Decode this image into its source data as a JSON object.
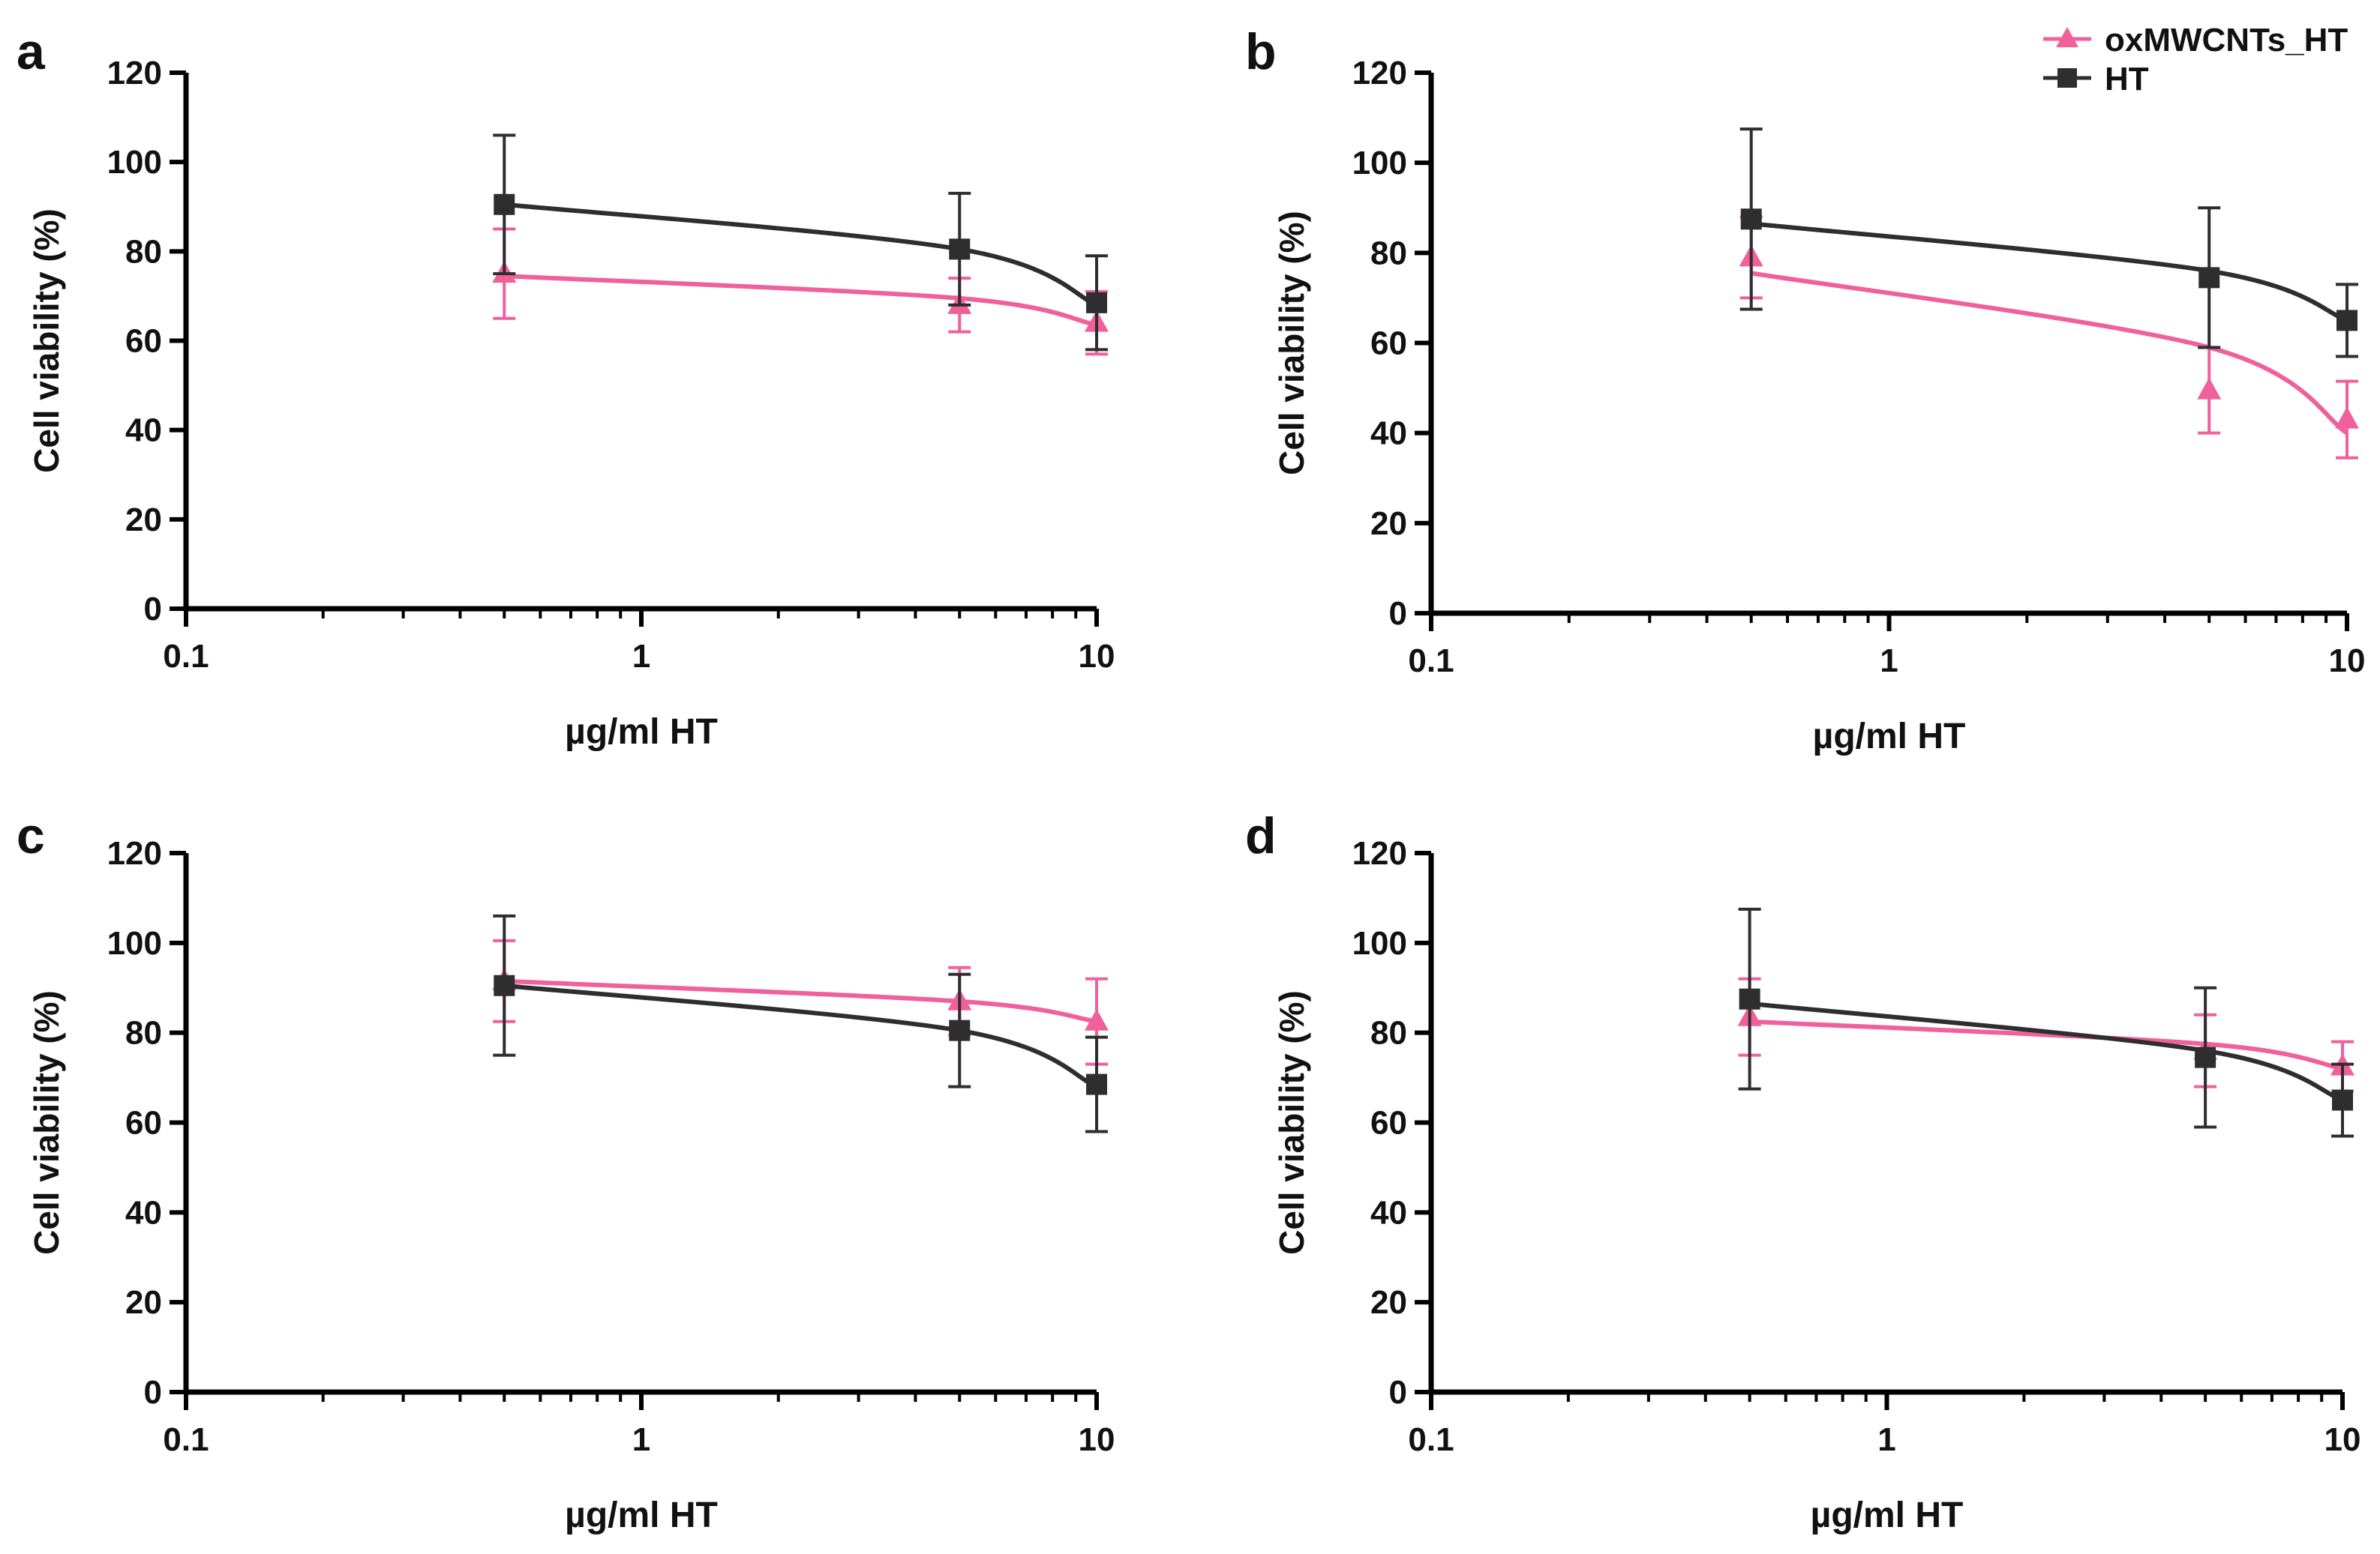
{
  "colors": {
    "oxMWCNTs_HT": "#f0609a",
    "HT": "#2e2e2e",
    "axis": "#000000",
    "text": "#111111"
  },
  "legend": {
    "placement": "top-right of panel b",
    "entries": [
      {
        "name": "oxMWCNTs_HT",
        "marker": "triangle-up-icon",
        "color": "#f0609a"
      },
      {
        "name": "HT",
        "marker": "square-icon",
        "color": "#2e2e2e"
      }
    ]
  },
  "chart_data": [
    {
      "panel": "a",
      "type": "scatter",
      "xscale": "log",
      "xlabel": "µg/ml HT",
      "ylabel": "Cell viability (%)",
      "xlim": [
        0.1,
        10
      ],
      "ylim": [
        0,
        120
      ],
      "xticks": [
        "0.1",
        "1",
        "10"
      ],
      "yticks": [
        "0",
        "20",
        "40",
        "60",
        "80",
        "100",
        "120"
      ],
      "series": [
        {
          "name": "oxMWCNTs_HT",
          "x": [
            0.5,
            5,
            10
          ],
          "y": [
            75,
            68,
            64
          ],
          "err": [
            10,
            6,
            7
          ],
          "fit": [
            74.5,
            69.5,
            63.5
          ]
        },
        {
          "name": "HT",
          "x": [
            0.5,
            5,
            10
          ],
          "y": [
            90.5,
            80.5,
            68.5
          ],
          "err": [
            15.5,
            12.5,
            10.5
          ],
          "fit": [
            90.5,
            80.5,
            68
          ]
        }
      ]
    },
    {
      "panel": "b",
      "type": "scatter",
      "xscale": "log",
      "xlabel": "µg/ml HT",
      "ylabel": "Cell viability (%)",
      "xlim": [
        0.1,
        10
      ],
      "ylim": [
        0,
        120
      ],
      "xticks": [
        "0.1",
        "1",
        "10"
      ],
      "yticks": [
        "0",
        "20",
        "40",
        "60",
        "80",
        "100",
        "120"
      ],
      "series": [
        {
          "name": "oxMWCNTs_HT",
          "x": [
            0.5,
            5,
            10
          ],
          "y": [
            79,
            49.5,
            43
          ],
          "err": [
            9,
            9.5,
            8.5
          ],
          "fit": [
            75.5,
            59,
            40
          ]
        },
        {
          "name": "HT",
          "x": [
            0.5,
            5,
            10
          ],
          "y": [
            87.5,
            74.5,
            65
          ],
          "err": [
            20,
            15.5,
            8
          ],
          "fit": [
            86.5,
            76,
            65
          ]
        }
      ]
    },
    {
      "panel": "c",
      "type": "scatter",
      "xscale": "log",
      "xlabel": "µg/ml HT",
      "ylabel": "Cell viability (%)",
      "xlim": [
        0.1,
        10
      ],
      "ylim": [
        0,
        120
      ],
      "xticks": [
        "0.1",
        "1",
        "10"
      ],
      "yticks": [
        "0",
        "20",
        "40",
        "60",
        "80",
        "100",
        "120"
      ],
      "series": [
        {
          "name": "oxMWCNTs_HT",
          "x": [
            0.5,
            5,
            10
          ],
          "y": [
            91.5,
            87,
            82.5
          ],
          "err": [
            9,
            7.5,
            9.5
          ],
          "fit": [
            91.5,
            87,
            82.5
          ]
        },
        {
          "name": "HT",
          "x": [
            0.5,
            5,
            10
          ],
          "y": [
            90.5,
            80.5,
            68.5
          ],
          "err": [
            15.5,
            12.5,
            10.5
          ],
          "fit": [
            90.5,
            80.5,
            68
          ]
        }
      ]
    },
    {
      "panel": "d",
      "type": "scatter",
      "xscale": "log",
      "xlabel": "µg/ml HT",
      "ylabel": "Cell viability (%)",
      "xlim": [
        0.1,
        10
      ],
      "ylim": [
        0,
        120
      ],
      "xticks": [
        "0.1",
        "1",
        "10"
      ],
      "yticks": [
        "0",
        "20",
        "40",
        "60",
        "80",
        "100",
        "120"
      ],
      "series": [
        {
          "name": "oxMWCNTs_HT",
          "x": [
            0.5,
            5,
            10
          ],
          "y": [
            83.5,
            76,
            72.5
          ],
          "err": [
            8.5,
            8,
            5.5
          ],
          "fit": [
            82.5,
            77.5,
            72
          ]
        },
        {
          "name": "HT",
          "x": [
            0.5,
            5,
            10
          ],
          "y": [
            87.5,
            74.5,
            65
          ],
          "err": [
            20,
            15.5,
            8
          ],
          "fit": [
            86.5,
            76,
            65
          ]
        }
      ]
    }
  ]
}
